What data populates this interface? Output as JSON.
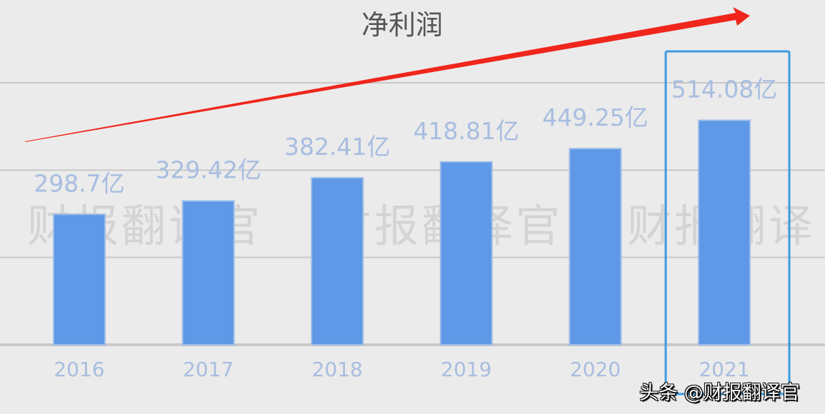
{
  "chart_data": {
    "type": "bar",
    "title": "净利润",
    "categories": [
      "2016",
      "2017",
      "2018",
      "2019",
      "2020",
      "2021"
    ],
    "values": [
      298.7,
      329.42,
      382.41,
      418.81,
      449.25,
      514.08
    ],
    "data_labels": [
      "298.7亿",
      "329.42亿",
      "382.41亿",
      "418.81亿",
      "449.25亿",
      "514.08亿"
    ],
    "ylim": [
      0,
      600
    ],
    "gridlines": [
      200,
      400,
      600
    ],
    "grid": true,
    "highlighted_category": "2021",
    "trend_arrow": "rising",
    "colors": {
      "bar": "#5e98e6",
      "label": "#a8bde0",
      "arrow": "#f0261c",
      "highlight": "#3a9be0",
      "grid": "#c8c8c8"
    }
  },
  "watermark": [
    "财报翻译官",
    "财报翻译官",
    "财报翻译"
  ],
  "footer": "头条 @财报翻译官"
}
